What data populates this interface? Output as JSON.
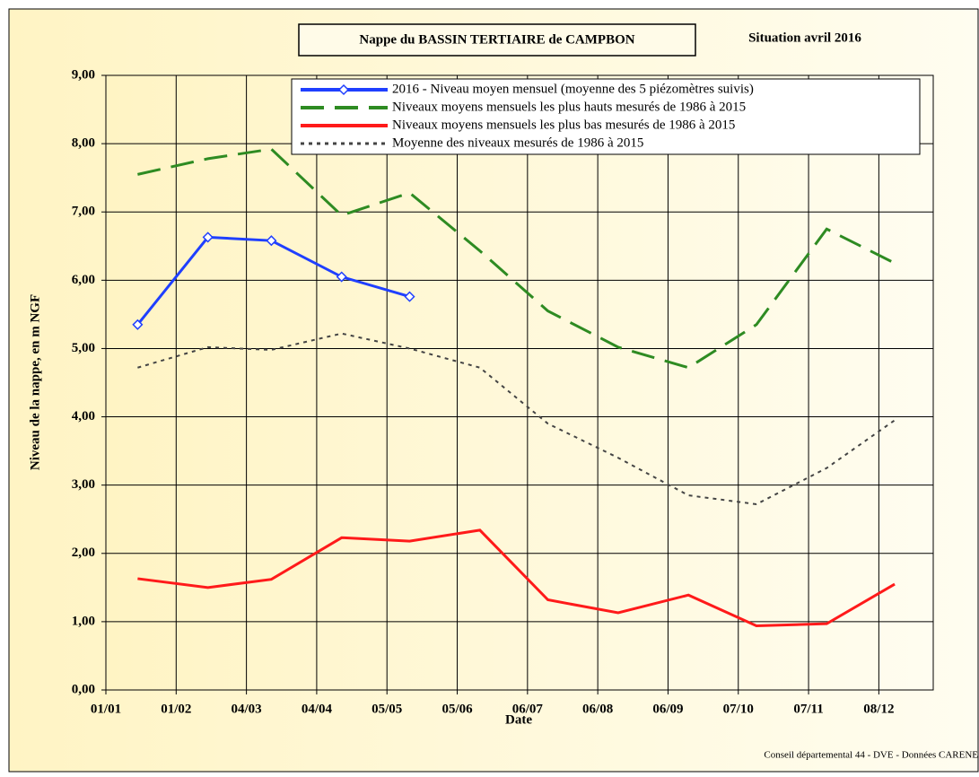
{
  "chart_data": {
    "type": "line",
    "title": "Nappe du BASSIN TERTIAIRE de CAMPBON",
    "subtitle": "Situation avril 2016",
    "x_label": "Date",
    "y_label": "Niveau de la nappe, en m NGF",
    "source": "Conseil départemental 44 - DVE -    Données CARENE",
    "x": [
      14,
      45,
      73,
      104,
      134,
      165,
      195,
      226,
      257,
      287,
      318,
      348
    ],
    "xlim": [
      0,
      365
    ],
    "xticks": [
      {
        "value": 0,
        "label": "01/01"
      },
      {
        "value": 31,
        "label": "01/02"
      },
      {
        "value": 62,
        "label": "04/03"
      },
      {
        "value": 93,
        "label": "04/04"
      },
      {
        "value": 124,
        "label": "05/05"
      },
      {
        "value": 155,
        "label": "05/06"
      },
      {
        "value": 186,
        "label": "06/07"
      },
      {
        "value": 217,
        "label": "06/08"
      },
      {
        "value": 248,
        "label": "06/09"
      },
      {
        "value": 279,
        "label": "07/10"
      },
      {
        "value": 310,
        "label": "07/11"
      },
      {
        "value": 341,
        "label": "08/12"
      }
    ],
    "ylim": [
      0,
      9
    ],
    "yticks": [
      {
        "value": 0,
        "label": "0,00"
      },
      {
        "value": 1,
        "label": "1,00"
      },
      {
        "value": 2,
        "label": "2,00"
      },
      {
        "value": 3,
        "label": "3,00"
      },
      {
        "value": 4,
        "label": "4,00"
      },
      {
        "value": 5,
        "label": "5,00"
      },
      {
        "value": 6,
        "label": "6,00"
      },
      {
        "value": 7,
        "label": "7,00"
      },
      {
        "value": 8,
        "label": "8,00"
      },
      {
        "value": 9,
        "label": "9,00"
      }
    ],
    "grid": true,
    "legend": "top-right",
    "series": [
      {
        "name": "2016 - Niveau moyen mensuel (moyenne des 5 piézomètres suivis)",
        "color": "#1f3fff",
        "line_style": "solid",
        "marker": "diamond",
        "values": [
          5.35,
          6.63,
          6.58,
          6.05,
          5.76,
          null,
          null,
          null,
          null,
          null,
          null,
          null
        ]
      },
      {
        "name": "Niveaux moyens mensuels les plus hauts mesurés de 1986 à 2015",
        "color": "#2e8b22",
        "line_style": "dashed",
        "values": [
          7.55,
          7.78,
          7.92,
          6.95,
          7.28,
          6.43,
          5.55,
          5.02,
          4.72,
          5.35,
          6.75,
          6.25
        ]
      },
      {
        "name": "Niveaux moyens mensuels les plus bas mesurés de 1986 à 2015",
        "color": "#ff1a1a",
        "line_style": "solid",
        "values": [
          1.63,
          1.5,
          1.62,
          2.23,
          2.18,
          2.34,
          1.32,
          1.13,
          1.39,
          0.94,
          0.97,
          1.55
        ]
      },
      {
        "name": "Moyenne des niveaux mesurés de 1986 à 2015",
        "color": "#444444",
        "line_style": "dotted",
        "values": [
          4.72,
          5.02,
          4.98,
          5.22,
          5.0,
          4.72,
          3.9,
          3.4,
          2.85,
          2.72,
          3.25,
          3.95
        ]
      }
    ]
  }
}
